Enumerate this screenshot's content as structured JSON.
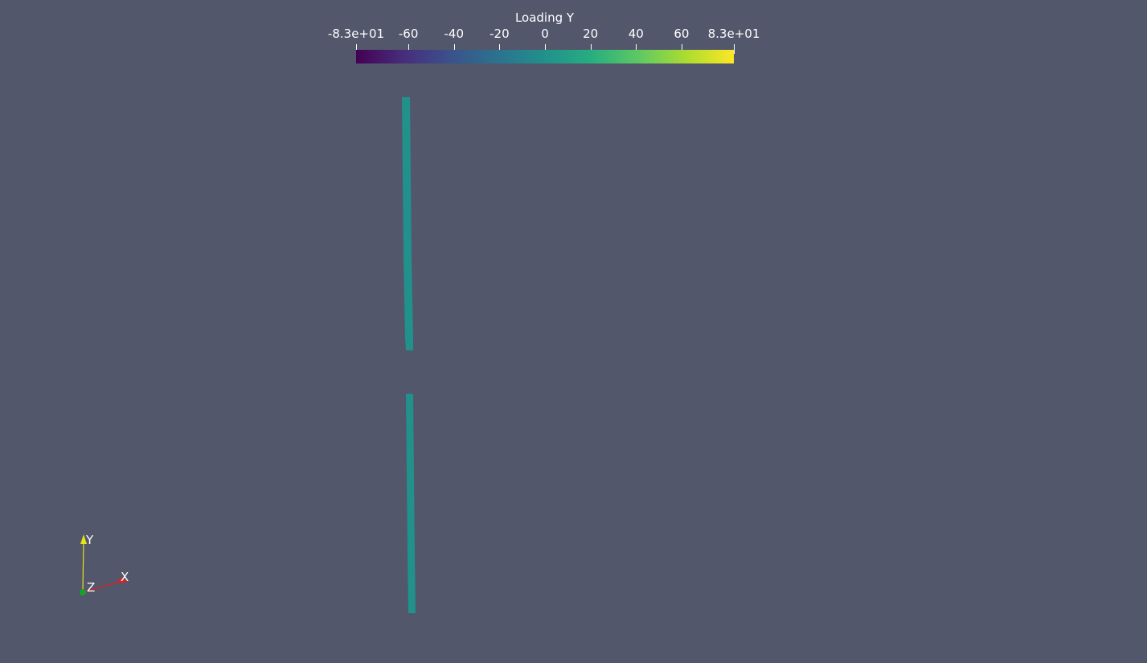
{
  "colorbar": {
    "title": "Loading Y",
    "range": [
      -83,
      83
    ],
    "colormap": "viridis",
    "ticks": [
      {
        "label": "-8.3e+01",
        "value": -83
      },
      {
        "label": "-60",
        "value": -60
      },
      {
        "label": "-40",
        "value": -40
      },
      {
        "label": "-20",
        "value": -20
      },
      {
        "label": "0",
        "value": 0
      },
      {
        "label": "20",
        "value": 20
      },
      {
        "label": "40",
        "value": 40
      },
      {
        "label": "60",
        "value": 60
      },
      {
        "label": "8.3e+01",
        "value": 83
      }
    ],
    "stops": [
      "#440154",
      "#472d7b",
      "#3b528b",
      "#2c728e",
      "#21918c",
      "#28ae80",
      "#5ec962",
      "#addc30",
      "#fde725"
    ]
  },
  "scene": {
    "background": "#52576b",
    "curve_color": "#21918c"
  },
  "axes": {
    "x_label": "X",
    "y_label": "Y",
    "z_label": "Z",
    "x_color": "#e0201e",
    "y_color": "#e8e21a",
    "z_color": "#18a028"
  }
}
